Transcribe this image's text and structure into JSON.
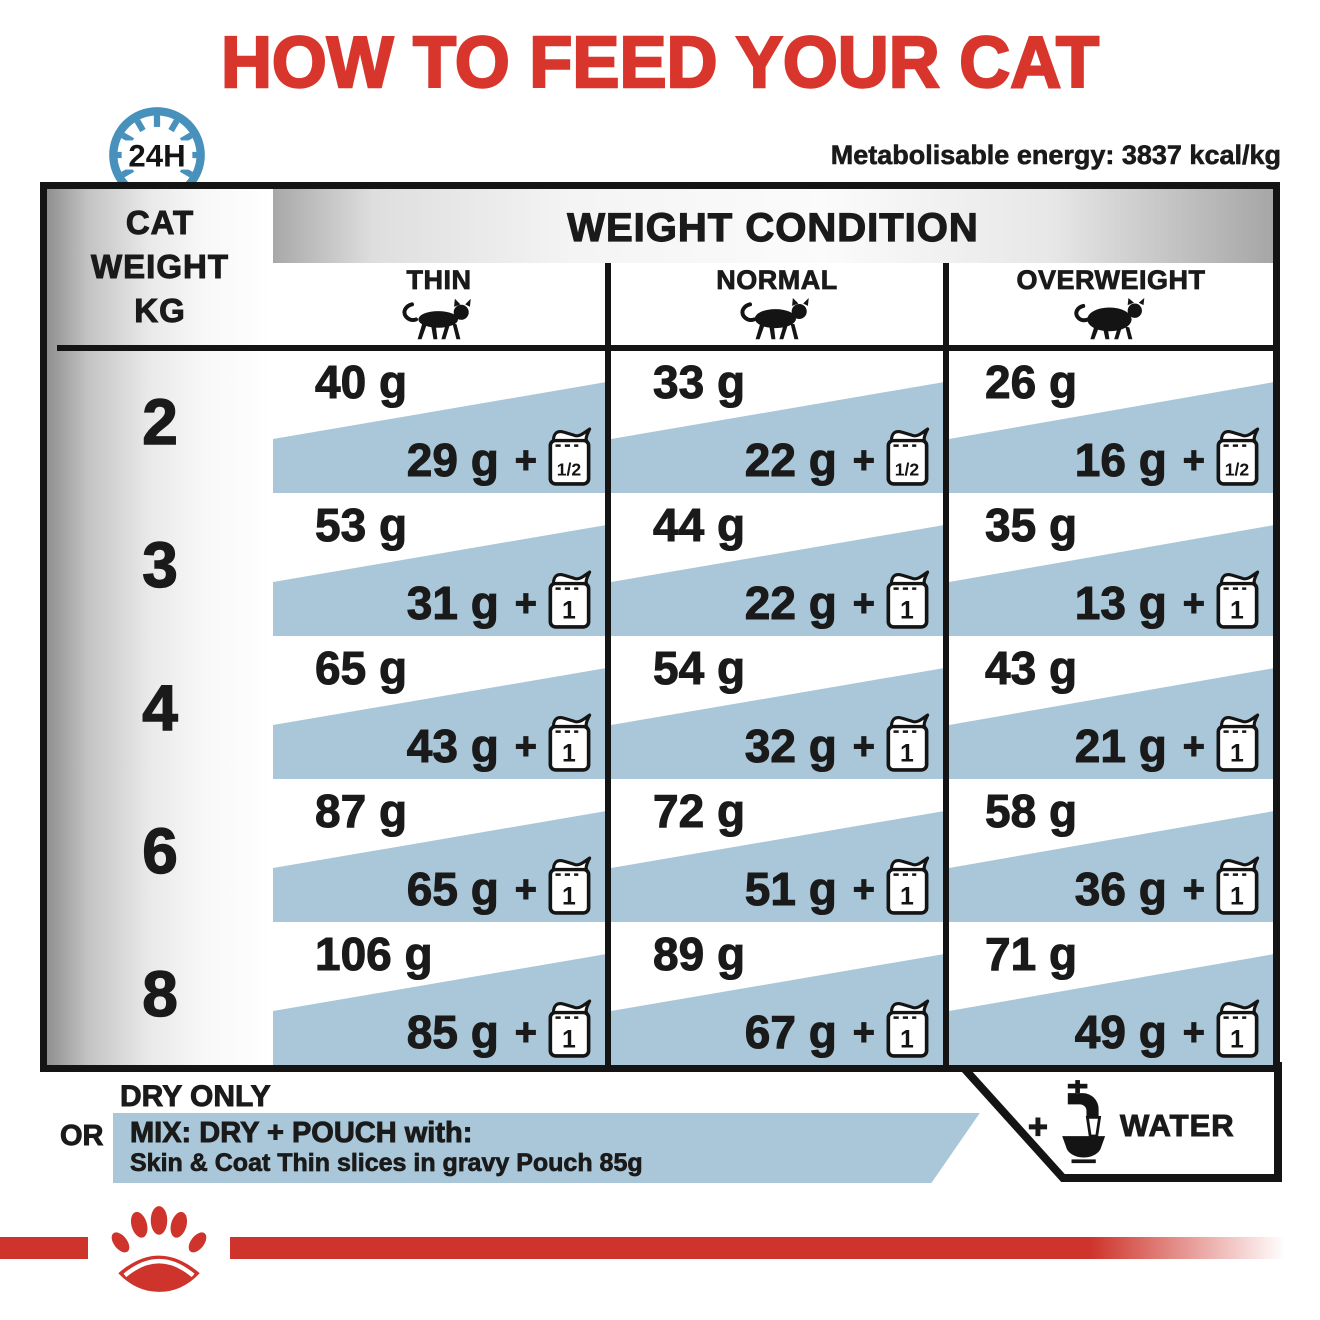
{
  "title": "HOW TO FEED YOUR CAT",
  "energy_note": "Metabolisable energy: 3837 kcal/kg",
  "clock": {
    "label": "24H"
  },
  "table": {
    "row_header": {
      "line1": "CAT",
      "line2": "WEIGHT",
      "line3": "KG"
    },
    "col_group_title": "WEIGHT CONDITION",
    "columns": [
      {
        "label": "THIN",
        "icon": "cat-thin-icon"
      },
      {
        "label": "NORMAL",
        "icon": "cat-normal-icon"
      },
      {
        "label": "OVERWEIGHT",
        "icon": "cat-overweight-icon"
      }
    ],
    "plus_sign": "+",
    "rows": [
      {
        "weight_kg": "2",
        "cells": [
          {
            "dry": "40 g",
            "mix": "29 g",
            "pouch": "1/2"
          },
          {
            "dry": "33 g",
            "mix": "22 g",
            "pouch": "1/2"
          },
          {
            "dry": "26 g",
            "mix": "16 g",
            "pouch": "1/2"
          }
        ]
      },
      {
        "weight_kg": "3",
        "cells": [
          {
            "dry": "53 g",
            "mix": "31 g",
            "pouch": "1"
          },
          {
            "dry": "44 g",
            "mix": "22 g",
            "pouch": "1"
          },
          {
            "dry": "35 g",
            "mix": "13 g",
            "pouch": "1"
          }
        ]
      },
      {
        "weight_kg": "4",
        "cells": [
          {
            "dry": "65 g",
            "mix": "43 g",
            "pouch": "1"
          },
          {
            "dry": "54 g",
            "mix": "32 g",
            "pouch": "1"
          },
          {
            "dry": "43 g",
            "mix": "21 g",
            "pouch": "1"
          }
        ]
      },
      {
        "weight_kg": "6",
        "cells": [
          {
            "dry": "87 g",
            "mix": "65 g",
            "pouch": "1"
          },
          {
            "dry": "72 g",
            "mix": "51 g",
            "pouch": "1"
          },
          {
            "dry": "58 g",
            "mix": "36 g",
            "pouch": "1"
          }
        ]
      },
      {
        "weight_kg": "8",
        "cells": [
          {
            "dry": "106 g",
            "mix": "85 g",
            "pouch": "1"
          },
          {
            "dry": "89 g",
            "mix": "67 g",
            "pouch": "1"
          },
          {
            "dry": "71 g",
            "mix": "49 g",
            "pouch": "1"
          }
        ]
      }
    ]
  },
  "legend": {
    "dry_only": "DRY ONLY",
    "or": "OR",
    "mix_title": "MIX: DRY + POUCH with:",
    "mix_subtitle": "Skin & Coat Thin slices in gravy Pouch 85g",
    "plus": "+",
    "water": "WATER"
  },
  "colors": {
    "accent_red": "#d8362d",
    "band_blue": "#a9c7d8",
    "clock_blue": "#4891bc",
    "ink_black": "#1a1a1a"
  }
}
